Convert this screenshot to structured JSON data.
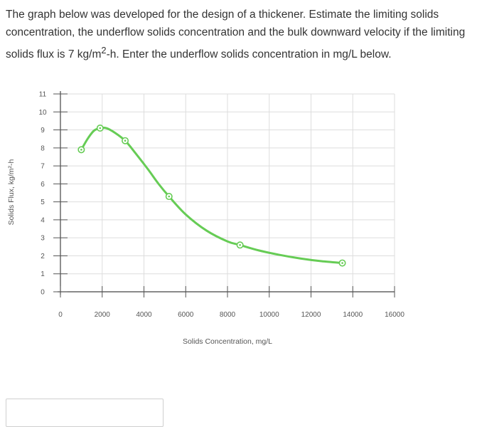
{
  "question": {
    "text_before": "The graph below was developed for the design of a thickener. Estimate the limiting solids concentration, the underflow solids concentration and the bulk downward velocity if the limiting solids flux is 7 kg/m",
    "sup": "2",
    "text_after": "-h. Enter the underflow solids concentration in mg/L below."
  },
  "answer": {
    "value": "",
    "placeholder": ""
  },
  "chart_data": {
    "type": "line",
    "xlabel": "Solids Concentration, mg/L",
    "ylabel": "Solids Flux, kg/m²-h",
    "xlim": [
      0,
      16000
    ],
    "ylim": [
      0,
      11
    ],
    "x_ticks": [
      "0",
      "2000",
      "4000",
      "6000",
      "8000",
      "10000",
      "12000",
      "14000",
      "16000"
    ],
    "y_ticks": [
      "0",
      "1",
      "2",
      "3",
      "4",
      "5",
      "6",
      "7",
      "8",
      "9",
      "10",
      "11"
    ],
    "grid": true,
    "color": "#66cc55",
    "points": [
      {
        "x": 1000,
        "y": 7.9
      },
      {
        "x": 1900,
        "y": 9.1
      },
      {
        "x": 3100,
        "y": 8.4
      },
      {
        "x": 5200,
        "y": 5.3
      },
      {
        "x": 8600,
        "y": 2.6
      },
      {
        "x": 13500,
        "y": 1.6
      }
    ],
    "curve": [
      {
        "x": 1000,
        "y": 7.9
      },
      {
        "x": 1300,
        "y": 8.5
      },
      {
        "x": 1600,
        "y": 8.95
      },
      {
        "x": 1900,
        "y": 9.1
      },
      {
        "x": 2200,
        "y": 9.1
      },
      {
        "x": 2600,
        "y": 8.85
      },
      {
        "x": 3100,
        "y": 8.4
      },
      {
        "x": 3600,
        "y": 7.7
      },
      {
        "x": 4200,
        "y": 6.8
      },
      {
        "x": 4700,
        "y": 6.0
      },
      {
        "x": 5200,
        "y": 5.3
      },
      {
        "x": 6000,
        "y": 4.3
      },
      {
        "x": 7000,
        "y": 3.4
      },
      {
        "x": 8000,
        "y": 2.8
      },
      {
        "x": 8600,
        "y": 2.6
      },
      {
        "x": 9500,
        "y": 2.3
      },
      {
        "x": 10500,
        "y": 2.05
      },
      {
        "x": 11500,
        "y": 1.85
      },
      {
        "x": 12500,
        "y": 1.7
      },
      {
        "x": 13500,
        "y": 1.6
      }
    ]
  }
}
